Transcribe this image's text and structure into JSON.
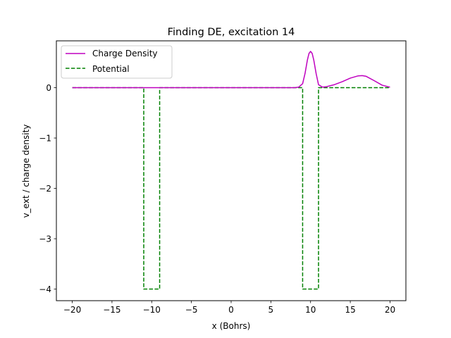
{
  "chart_data": {
    "type": "line",
    "title": "Finding DE, excitation 14",
    "xlabel": "x (Bohrs)",
    "ylabel": "v_ext / charge density",
    "xlim": [
      -22,
      22
    ],
    "ylim": [
      -4.23,
      0.93
    ],
    "x_ticks": [
      -20,
      -15,
      -10,
      -5,
      0,
      5,
      10,
      15,
      20
    ],
    "y_ticks": [
      0,
      -1,
      -2,
      -3,
      -4
    ],
    "x_tick_labels": [
      "−20",
      "−15",
      "−10",
      "−5",
      "0",
      "5",
      "10",
      "15",
      "20"
    ],
    "y_tick_labels": [
      "0",
      "−1",
      "−2",
      "−3",
      "−4"
    ],
    "grid": false,
    "legend_position": "upper-left",
    "series": [
      {
        "name": "Charge Density",
        "color": "#bf00bf",
        "style": "solid",
        "x": [
          -20,
          -10,
          0,
          8,
          8.5,
          9,
          9.3,
          9.6,
          9.8,
          10,
          10.2,
          10.4,
          10.7,
          11,
          11.5,
          12,
          13,
          14,
          15,
          16,
          16.5,
          17,
          18,
          19,
          20
        ],
        "y": [
          0,
          0,
          0,
          0,
          0.01,
          0.08,
          0.28,
          0.55,
          0.68,
          0.72,
          0.68,
          0.55,
          0.28,
          0.06,
          0.01,
          0.02,
          0.06,
          0.12,
          0.19,
          0.235,
          0.24,
          0.225,
          0.14,
          0.05,
          0.01
        ]
      },
      {
        "name": "Potential",
        "color": "#008000",
        "style": "dashed",
        "x": [
          -20,
          -11,
          -11,
          -9,
          -9,
          9,
          9,
          11,
          11,
          20
        ],
        "y": [
          0,
          0,
          -4,
          -4,
          0,
          0,
          -4,
          -4,
          0,
          0
        ]
      }
    ]
  }
}
